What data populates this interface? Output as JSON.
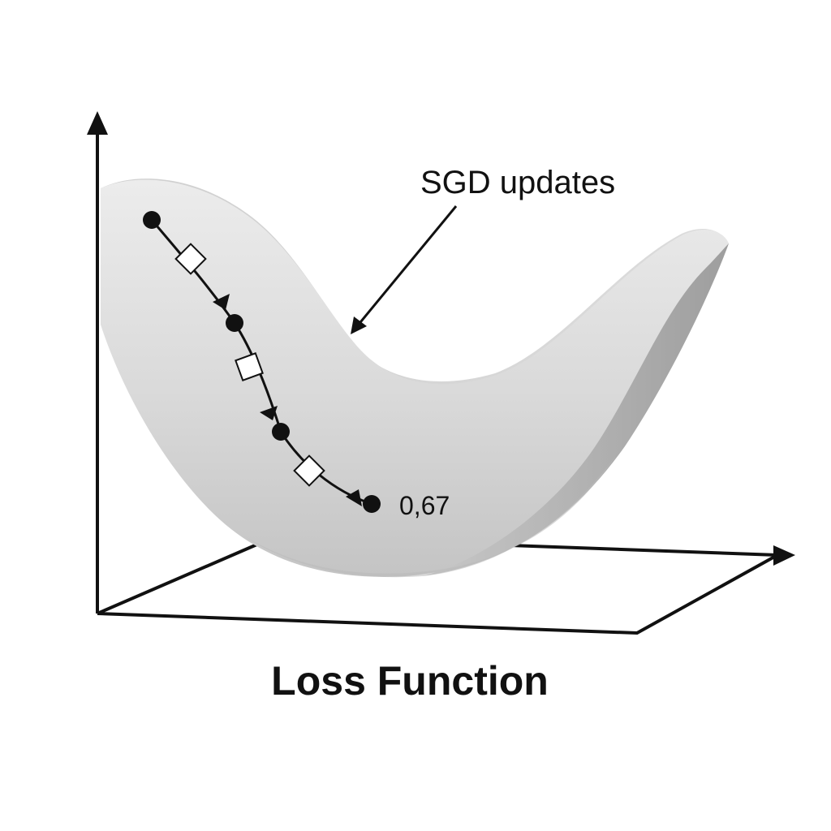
{
  "annotation": {
    "label": "SGD updates"
  },
  "final_value": {
    "label": "0,67"
  },
  "caption": {
    "title": "Loss Function"
  },
  "colors": {
    "ink": "#111111",
    "surface_light": "#e6e6e6",
    "surface_dark": "#a9a9a9",
    "marker_fill": "#ffffff"
  }
}
